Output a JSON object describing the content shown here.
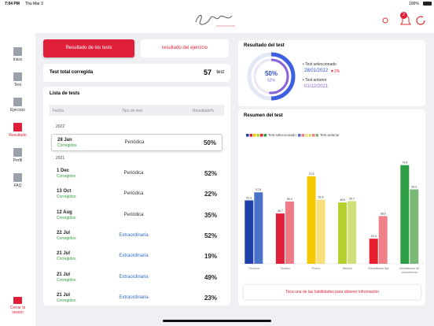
{
  "status_bar": {
    "time": "7:04 PM",
    "date": "Thu Mar 3",
    "battery": "100%"
  },
  "header": {
    "notifications": 2
  },
  "sidebar": {
    "items": [
      "Inicio",
      "Test",
      "Ejercicio",
      "Resultado",
      "Perfil",
      "FAQ"
    ],
    "active": 3,
    "logout": "Cerrar la sesión"
  },
  "tabs": {
    "items": [
      "Resultado de los tests",
      "resultado del ejercicio"
    ],
    "active": 0
  },
  "summary": {
    "label": "Test total corregida",
    "count": 57,
    "unit": "test"
  },
  "test_list": {
    "title": "Lista de tests",
    "columns": [
      "Fecha",
      "Tipo de test",
      "Resultado%"
    ],
    "groups": [
      {
        "year": "2022",
        "rows": [
          {
            "date": "28 Jan",
            "status": "Corregidos",
            "type": "Periódica",
            "result": "50%"
          }
        ]
      },
      {
        "year": "2021",
        "rows": [
          {
            "date": "1 Dec",
            "status": "Corregidos",
            "type": "Periódica",
            "result": "52%"
          },
          {
            "date": "13 Oct",
            "status": "Corregidos",
            "type": "Periódica",
            "result": "22%"
          },
          {
            "date": "12 Aug",
            "status": "Corregidos",
            "type": "Periódica",
            "result": "35%"
          },
          {
            "date": "22 Jul",
            "status": "Corregidos",
            "type": "Extraordinaria",
            "result": "52%"
          },
          {
            "date": "21 Jul",
            "status": "Corregidos",
            "type": "Extraordinaria",
            "result": "19%"
          },
          {
            "date": "21 Jul",
            "status": "Corregidos",
            "type": "Extraordinaria",
            "result": "49%"
          },
          {
            "date": "21 Jul",
            "status": "Corregidos",
            "type": "Extraordinaria",
            "result": "23%"
          }
        ]
      }
    ]
  },
  "result": {
    "title": "Resultado del test",
    "values": [
      50,
      52
    ],
    "value_labels": [
      "50%",
      "52%"
    ],
    "selected_label": "Test seleccionado",
    "selected_date": "28/01/2022",
    "change": "▼2%",
    "previous_label": "Test anterior",
    "previous_date": "01/12/2021"
  },
  "chart_data": {
    "type": "bar",
    "title": "Resumen del test",
    "categories": [
      "Técnica",
      "Táctico",
      "Físico",
      "Mental",
      "Mentalidad fija",
      "Mentalidad de crecimiento"
    ],
    "series": [
      {
        "name": "Test seleccionado",
        "colors": [
          "#1d3fa6",
          "#e0203a",
          "#f5c800",
          "#b6cf2a",
          "#e8202e",
          "#2e9e44"
        ],
        "values": [
          51.3,
          40.7,
          70.8,
          49.6,
          20.3,
          79.8
        ]
      },
      {
        "name": "Test anterior",
        "colors": [
          "#4a72c9",
          "#ee7b86",
          "#f7e07a",
          "#cfe07a",
          "#f08087",
          "#79b877"
        ],
        "values": [
          57.8,
          50.4,
          51.8,
          50.7,
          38.6,
          60.2
        ]
      }
    ],
    "ylim": [
      0,
      100
    ]
  },
  "hint": "Toca una de las habilidades para obtener información"
}
